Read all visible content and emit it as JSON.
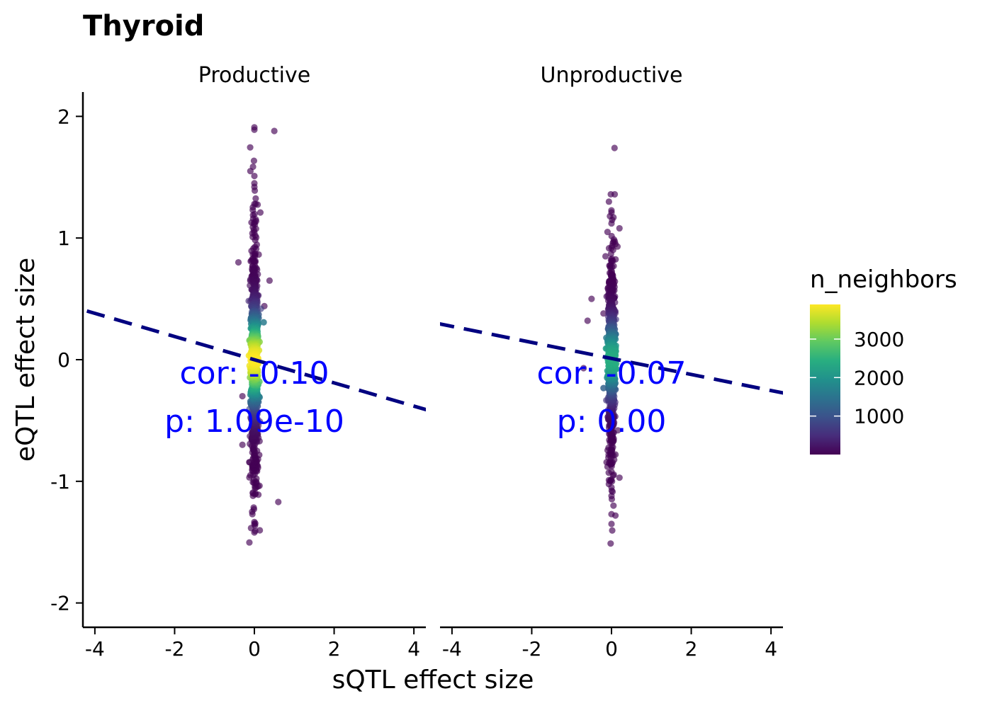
{
  "chart_data": {
    "type": "scatter",
    "title": "Thyroid",
    "xlabel": "sQTL effect size",
    "ylabel": "eQTL effect size",
    "xlim": [
      -4.3,
      4.3
    ],
    "ylim": [
      -2.2,
      2.2
    ],
    "x_ticks": [
      -4,
      -2,
      0,
      2,
      4
    ],
    "y_ticks": [
      -2,
      -1,
      0,
      1,
      2
    ],
    "x_tick_labels": [
      "-4",
      "-2",
      "0",
      "2",
      "4"
    ],
    "y_tick_labels": [
      "-2",
      "-1",
      "0",
      "1",
      "2"
    ],
    "colors": {
      "line": "#000080",
      "annotation": "#0000ff"
    },
    "panels": [
      {
        "strip": "Productive",
        "annotation_cor": "cor: -0.10",
        "annotation_p": "p: 1.09e-10",
        "fit_line": {
          "x": [
            -4.2,
            4.4
          ],
          "y": [
            0.4,
            -0.42
          ]
        },
        "outliers": [
          {
            "x": 0.0,
            "y": 1.91
          },
          {
            "x": 0.0,
            "y": 1.89
          },
          {
            "x": 0.5,
            "y": 1.88
          },
          {
            "x": -0.1,
            "y": 1.55
          },
          {
            "x": 0.0,
            "y": 1.51
          },
          {
            "x": 0.0,
            "y": 1.45
          },
          {
            "x": 0.0,
            "y": 1.42
          },
          {
            "x": 0.0,
            "y": 1.28
          },
          {
            "x": 0.15,
            "y": 1.21
          },
          {
            "x": -0.4,
            "y": 0.8
          },
          {
            "x": 0.38,
            "y": 0.65
          },
          {
            "x": 0.25,
            "y": 0.44
          },
          {
            "x": -0.3,
            "y": -0.3
          },
          {
            "x": -0.3,
            "y": -0.7
          },
          {
            "x": 0.6,
            "y": -1.17
          },
          {
            "x": -0.05,
            "y": -1.27
          },
          {
            "x": 0.0,
            "y": -1.35
          },
          {
            "x": 0.0,
            "y": -1.42
          },
          {
            "x": 0.1,
            "y": -1.11
          },
          {
            "x": -0.1,
            "y": -0.95
          }
        ]
      },
      {
        "strip": "Unproductive",
        "annotation_cor": "cor: -0.07",
        "annotation_p": "p: 0.00",
        "fit_line": {
          "x": [
            -4.4,
            4.4
          ],
          "y": [
            0.3,
            -0.28
          ]
        },
        "outliers": [
          {
            "x": 0.0,
            "y": 1.21
          },
          {
            "x": 0.05,
            "y": 1.17
          },
          {
            "x": 0.0,
            "y": 1.12
          },
          {
            "x": 0.2,
            "y": 1.08
          },
          {
            "x": -0.1,
            "y": 1.05
          },
          {
            "x": 0.1,
            "y": 0.95
          },
          {
            "x": 0.15,
            "y": 0.93
          },
          {
            "x": -0.15,
            "y": 0.85
          },
          {
            "x": -0.5,
            "y": 0.5
          },
          {
            "x": -0.6,
            "y": 0.32
          },
          {
            "x": -0.2,
            "y": 0.38
          },
          {
            "x": -0.7,
            "y": -0.07
          },
          {
            "x": 0.2,
            "y": -0.97
          },
          {
            "x": 0.0,
            "y": -1.12
          },
          {
            "x": 0.05,
            "y": -1.2
          },
          {
            "x": 0.0,
            "y": -1.27
          },
          {
            "x": 0.0,
            "y": -1.35
          },
          {
            "x": 0.1,
            "y": -0.78
          },
          {
            "x": -0.1,
            "y": -0.88
          },
          {
            "x": 0.0,
            "y": -1.05
          }
        ]
      }
    ],
    "legend": {
      "title": "n_neighbors",
      "placement": "right",
      "range": [
        0,
        3900
      ],
      "ticks": [
        1000,
        2000,
        3000
      ],
      "tick_labels": [
        "1000",
        "2000",
        "3000"
      ],
      "colormap": [
        "#440154",
        "#472d7b",
        "#3b528b",
        "#2c728e",
        "#21918c",
        "#28ae80",
        "#5ec962",
        "#addc30",
        "#fde725"
      ]
    }
  }
}
